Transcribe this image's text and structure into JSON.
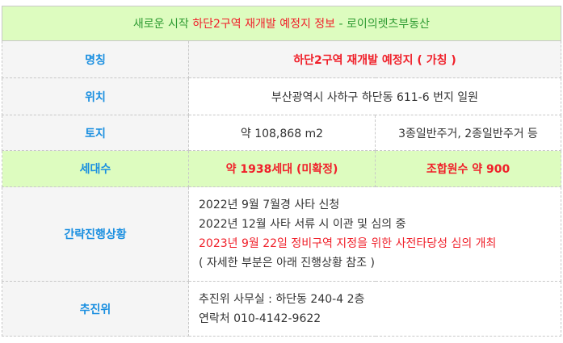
{
  "header": {
    "part1": "새로운 시작 ",
    "part2": "하단2구역 재개발 예정지 정보",
    "part3": " - 로이의렛츠부동산"
  },
  "rows": {
    "name": {
      "label": "명칭",
      "value": "하단2구역 재개발 예정지 ( 가칭 )"
    },
    "location": {
      "label": "위치",
      "value": "부산광역시 사하구 하단동 611-6 번지 일원"
    },
    "land": {
      "label": "토지",
      "area": "약 108,868 m2",
      "zoning": "3종일반주거, 2종일반주거 등"
    },
    "households": {
      "label": "세대수",
      "count": "약 1938세대 (미확정)",
      "members": "조합원수 약 900"
    },
    "progress": {
      "label": "간략진행상황",
      "lines": [
        "2022년 9월 7월경 사타 신청",
        "2022년 12월 사타 서류 시 이관 및 심의 중",
        "2023년 9월 22일 정비구역 지정을 위한 사전타당성 심의 개최",
        "( 자세한 부분은 아래 진행상황 참조 )"
      ]
    },
    "committee": {
      "label": "추진위",
      "office": "추진위 사무실 : 하단동 240-4 2층",
      "contact": "연락처 010-4142-9622"
    }
  },
  "colors": {
    "label": "#1a8fe0",
    "accent_red": "#f0202a",
    "green": "#2e9b32",
    "header_bg": "#ddfcbf"
  }
}
